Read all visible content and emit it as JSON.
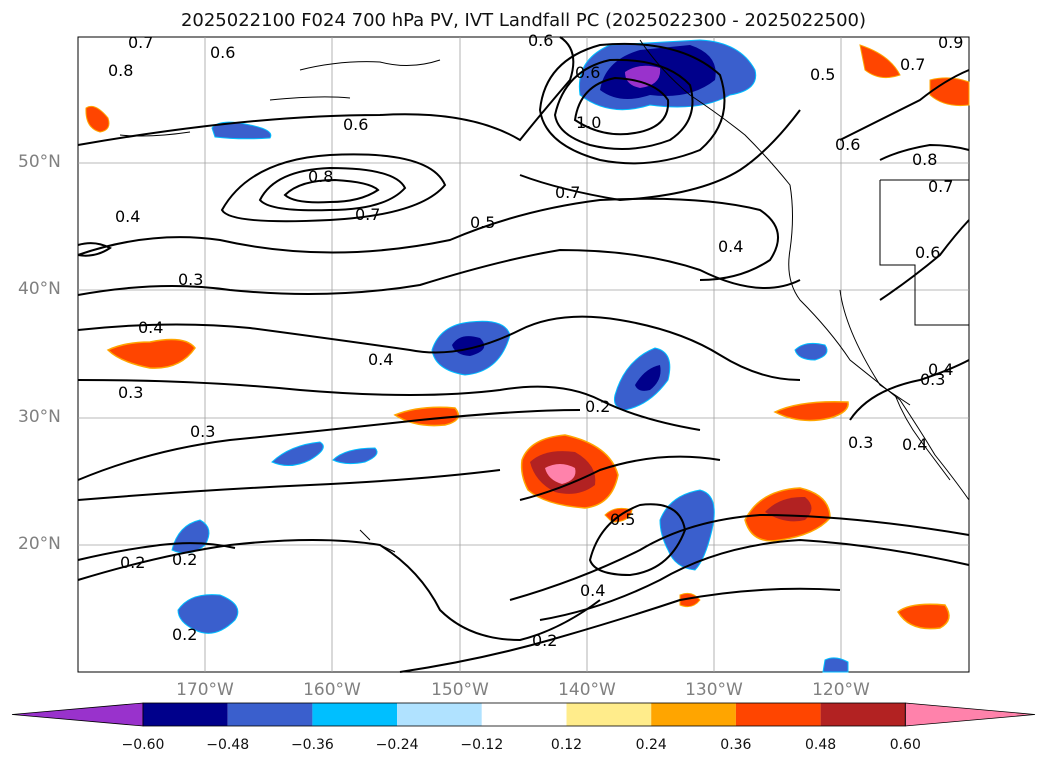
{
  "title": "2025022100 F024 700 hPa PV, IVT Landfall PC (2025022300 - 2025022500)",
  "lat_labels": [
    "50°N",
    "40°N",
    "30°N",
    "20°N"
  ],
  "lon_labels": [
    "170°W",
    "160°W",
    "150°W",
    "140°W",
    "130°W",
    "120°W"
  ],
  "contour_labels": [
    "0.7",
    "0.6",
    "0.6",
    "0.8",
    "0.6",
    "0.9",
    "0.7",
    "0.5",
    "0.8",
    "0.4",
    "0.6",
    "0.8",
    "0.7",
    "0.5",
    "0.7",
    "0.4",
    "0.3",
    "0.4",
    "0.3",
    "0.4",
    "0.3",
    "0.2",
    "0.4",
    "0.2",
    "0.2",
    "0.2",
    "0.5",
    "0.2",
    "0.4",
    "0.3",
    "0.3",
    "0.4",
    "1.0",
    "0.6",
    "0.6",
    "0.7"
  ],
  "colorbar": {
    "colors": [
      "#9932cc",
      "#00008b",
      "#3a5fcd",
      "#00bfff",
      "#b0e2ff",
      "#ffffff",
      "#ffec8b",
      "#ffa500",
      "#ff4500",
      "#b22222",
      "#ff82ab"
    ],
    "tick_labels": [
      "−0.60",
      "−0.48",
      "−0.36",
      "−0.24",
      "−0.12",
      "0.12",
      "0.24",
      "0.36",
      "0.48",
      "0.60"
    ]
  },
  "colors": {
    "land_outline": "#000000",
    "grid": "#a0a0a0",
    "contour": "#000000"
  }
}
